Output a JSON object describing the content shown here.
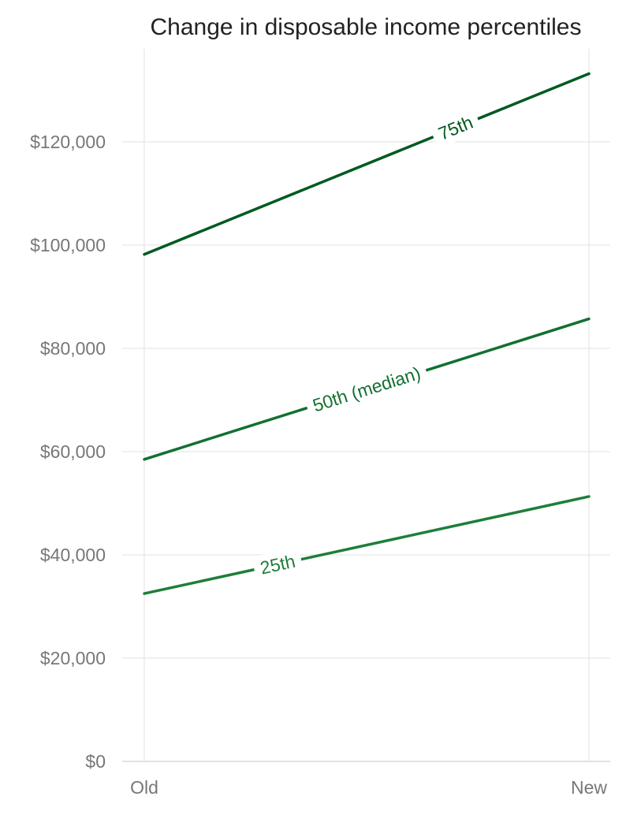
{
  "chart_data": {
    "type": "line",
    "title": "Change in disposable income percentiles",
    "xlabel": "",
    "ylabel": "",
    "categories": [
      "Old",
      "New"
    ],
    "ylim": [
      0,
      138000
    ],
    "yticks": [
      0,
      20000,
      40000,
      60000,
      80000,
      100000,
      120000
    ],
    "ytick_labels": [
      "$0",
      "$20,000",
      "$40,000",
      "$60,000",
      "$80,000",
      "$100,000",
      "$120,000"
    ],
    "grid": true,
    "legend": "none",
    "series": [
      {
        "name": "25th",
        "values": [
          32500,
          51300
        ],
        "color": "#1e7e3a",
        "label_position": 0.3
      },
      {
        "name": "50th (median)",
        "values": [
          58500,
          85700
        ],
        "color": "#137032",
        "label_position": 0.5
      },
      {
        "name": "75th",
        "values": [
          98200,
          133200
        ],
        "color": "#005a20",
        "label_position": 0.7
      }
    ]
  }
}
